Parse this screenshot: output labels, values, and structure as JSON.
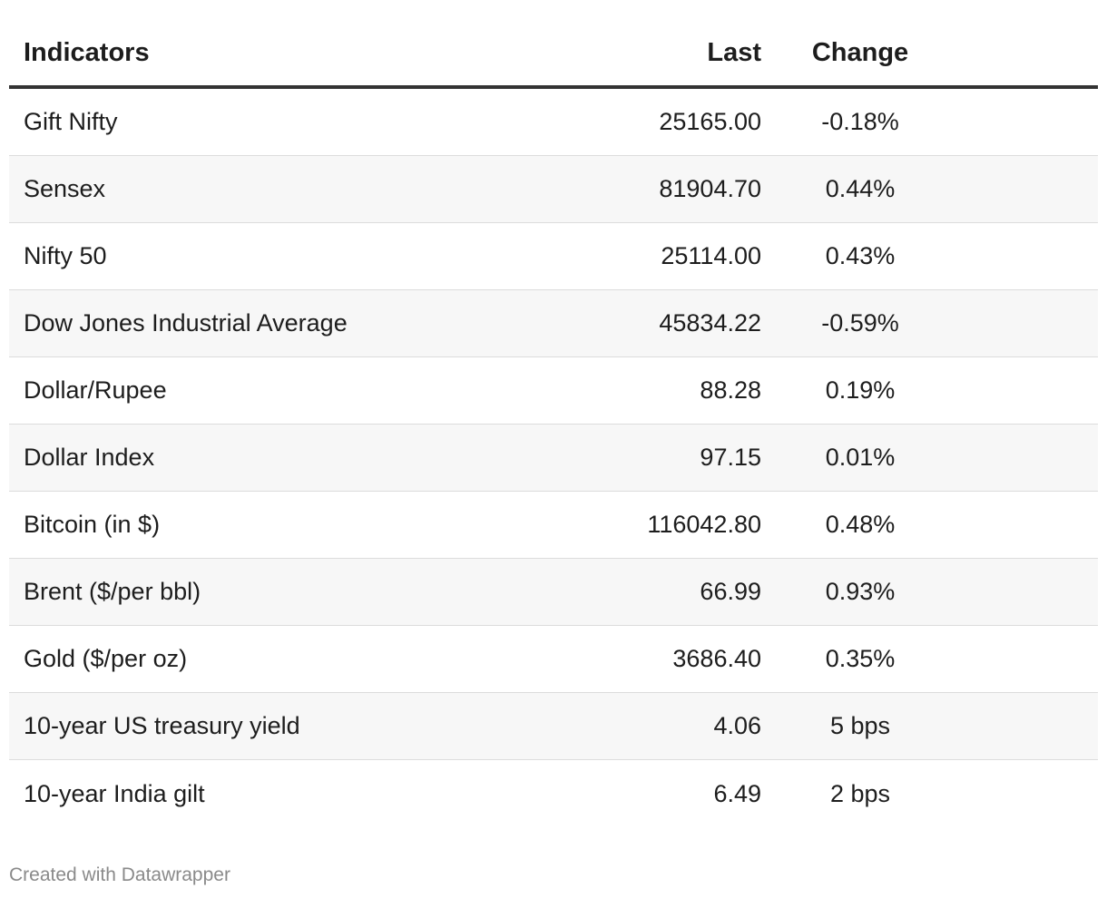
{
  "chart_data": {
    "type": "table",
    "columns": [
      "Indicators",
      "Last",
      "Change"
    ],
    "rows": [
      {
        "indicator": "Gift Nifty",
        "last": "25165.00",
        "change": "-0.18%"
      },
      {
        "indicator": "Sensex",
        "last": "81904.70",
        "change": "0.44%"
      },
      {
        "indicator": "Nifty 50",
        "last": "25114.00",
        "change": "0.43%"
      },
      {
        "indicator": "Dow Jones Industrial Average",
        "last": "45834.22",
        "change": "-0.59%"
      },
      {
        "indicator": "Dollar/Rupee",
        "last": "88.28",
        "change": "0.19%"
      },
      {
        "indicator": "Dollar Index",
        "last": "97.15",
        "change": "0.01%"
      },
      {
        "indicator": "Bitcoin (in $)",
        "last": "116042.80",
        "change": "0.48%"
      },
      {
        "indicator": "Brent ($/per bbl)",
        "last": "66.99",
        "change": "0.93%"
      },
      {
        "indicator": "Gold ($/per oz)",
        "last": "3686.40",
        "change": "0.35%"
      },
      {
        "indicator": "10-year US treasury yield",
        "last": "4.06",
        "change": "5 bps"
      },
      {
        "indicator": "10-year India gilt",
        "last": "6.49",
        "change": "2 bps"
      }
    ]
  },
  "footer": {
    "credit": "Created with Datawrapper"
  }
}
